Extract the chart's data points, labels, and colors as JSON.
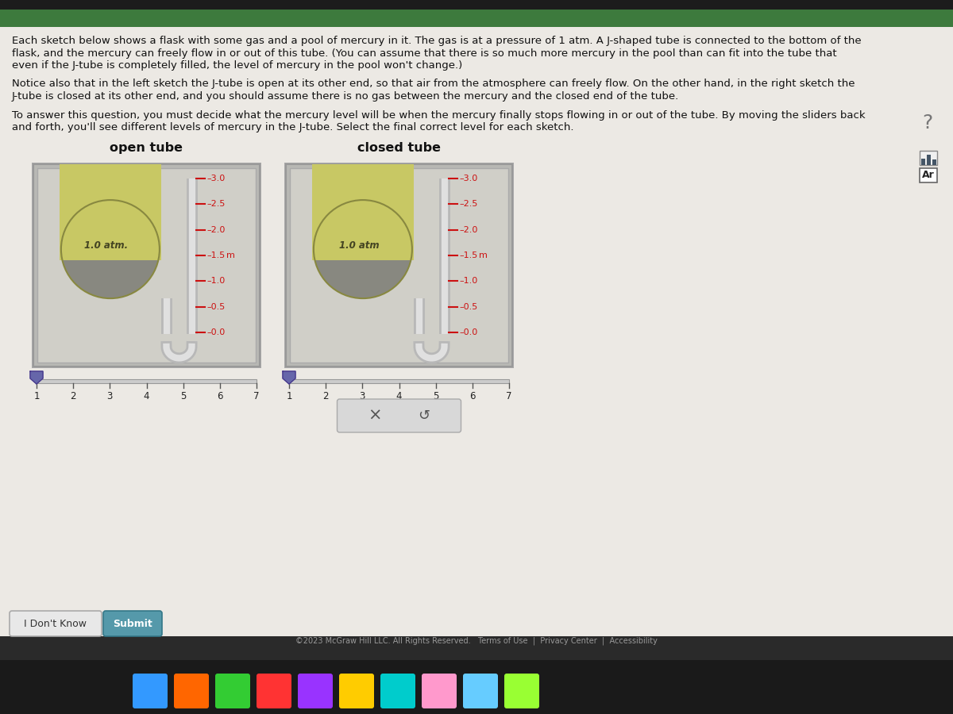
{
  "bg_outer": "#1a1a1a",
  "bg_screen": "#f2f0ee",
  "top_bar_color": "#3d7a3d",
  "text_color": "#111111",
  "text_lines_1": [
    "Each sketch below shows a flask with some gas and a pool of mercury in it. The gas is at a pressure of 1 atm. A J-shaped tube is connected to the bottom of the",
    "flask, and the mercury can freely flow in or out of this tube. (You can assume that there is so much more mercury in the pool than can fit into the tube that",
    "even if the J-tube is completely filled, the level of mercury in the pool won't change.)"
  ],
  "text_lines_2a": "Notice also that in the left sketch the J-tube is ",
  "text_lines_2b": "open",
  "text_lines_2c": " at its other end, so that air from the atmosphere can freely flow. On the other hand, in the right sketch the",
  "text_lines_2d": "J-tube is ",
  "text_lines_2e": "closed",
  "text_lines_2f": " at its other end, and you should assume there is no gas between the mercury and the closed end of the tube.",
  "text_lines_3": [
    "To answer this question, you must decide what the mercury level will be when the mercury finally stops flowing in or out of the tube. By moving the sliders back",
    "and forth, you'll see different levels of mercury in the J-tube. Select the final correct level for each sketch."
  ],
  "open_tube_label": "open tube",
  "closed_tube_label": "closed tube",
  "pressure_left": "1.0 atm.",
  "pressure_right": "1.0 atm",
  "scale_labels": [
    "3.0",
    "2.5",
    "2.0",
    "1.5",
    "1.0",
    "0.5",
    "0.0"
  ],
  "scale_unit": "m",
  "slider_ticks": [
    "1",
    "2",
    "3",
    "4",
    "5",
    "6",
    "7"
  ],
  "btn_idk": "I Don't Know",
  "btn_submit": "Submit",
  "copyright_text": "©2023 McGraw Hill LLC. All Rights Reserved.   Terms of Use  |  Privacy Center  |  Accessibility",
  "flask_green_top": "#c8c864",
  "flask_green_mid": "#b0b050",
  "flask_gray": "#888880",
  "flask_gray_dark": "#686860",
  "tube_gray": "#b8b8b8",
  "tube_light": "#e0e0e0",
  "scale_red": "#cc1111",
  "panel_bg_outer": "#c4c4c0",
  "panel_bg_inner": "#d8d8d4",
  "slider_blue": "#6666aa",
  "btn_submit_color": "#44aa99",
  "bottom_bar": "#111111",
  "page_bg": "#ece9e4"
}
